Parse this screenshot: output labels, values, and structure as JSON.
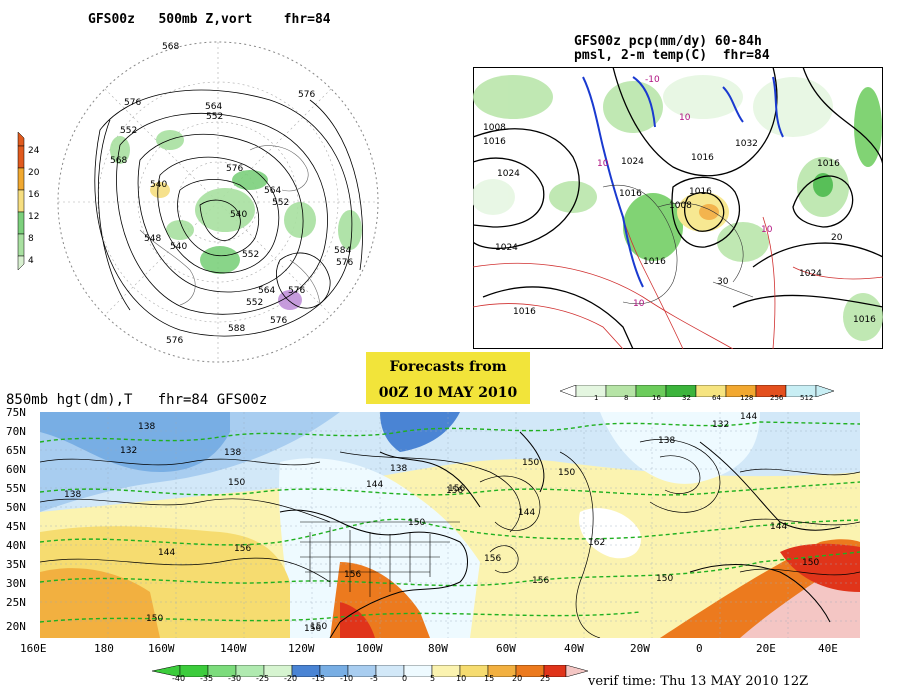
{
  "top_left_panel": {
    "title": "GFS00z   500mb Z,vort    fhr=84",
    "vort_scale": [
      "24",
      "20",
      "16",
      "12",
      "8",
      "4"
    ],
    "vort_colors": [
      "#e05a1e",
      "#f0a830",
      "#f6de80",
      "#7cd07c",
      "#a8e0a0",
      "#d8f0d0"
    ],
    "contour_labels": [
      "568",
      "576",
      "564",
      "552",
      "552",
      "576",
      "568",
      "540",
      "576",
      "564",
      "552",
      "540",
      "540",
      "584",
      "576",
      "548",
      "552",
      "564",
      "576",
      "588",
      "576",
      "552",
      "576"
    ]
  },
  "top_right_panel": {
    "title_line1": "GFS00z pcp(mm/dy) 60-84h",
    "title_line2": "pmsl, 2-m temp(C)  fhr=84",
    "isobar_labels": [
      "1008",
      "1016",
      "1024",
      "1024",
      "1016",
      "1032",
      "1016",
      "1016",
      "1024",
      "1016",
      "1008",
      "1016",
      "1016",
      "1024",
      "1016"
    ],
    "temp_labels": [
      "-10",
      "10",
      "10",
      "10",
      "10",
      "20",
      "30"
    ],
    "precip_scale": [
      "1",
      "8",
      "16",
      "32",
      "64",
      "128",
      "256",
      "512"
    ],
    "precip_colors": [
      "#e4f6e0",
      "#b6e4a6",
      "#6ccc5c",
      "#3cb43c",
      "#f6e480",
      "#f2a830",
      "#e4501e",
      "#c8eef4"
    ]
  },
  "banner": {
    "line1": "Forecasts from",
    "line2": "00Z 10 MAY 2010"
  },
  "bottom_panel": {
    "title": "850mb hgt(dm),T   fhr=84 GFS00z",
    "lat_labels": [
      "75N",
      "70N",
      "65N",
      "60N",
      "55N",
      "50N",
      "45N",
      "40N",
      "35N",
      "30N",
      "25N",
      "20N"
    ],
    "lon_labels": [
      "160E",
      "180",
      "160W",
      "140W",
      "120W",
      "100W",
      "80W",
      "60W",
      "40W",
      "20W",
      "0",
      "20E",
      "40E"
    ],
    "height_labels": [
      "138",
      "132",
      "138",
      "138",
      "150",
      "144",
      "156",
      "150",
      "156",
      "138",
      "144",
      "150",
      "156",
      "144",
      "138",
      "132",
      "144",
      "144",
      "156",
      "150",
      "156",
      "150",
      "162",
      "156",
      "150",
      "150",
      "150",
      "156"
    ],
    "temp_scale": [
      "-40",
      "-35",
      "-30",
      "-25",
      "-20",
      "-15",
      "-10",
      "-5",
      "0",
      "5",
      "10",
      "15",
      "20",
      "25"
    ],
    "temp_colors": [
      "#3ccc3c",
      "#7cdc7c",
      "#b0eab0",
      "#d6f4d0",
      "#4a84d4",
      "#78aee4",
      "#a8cdf0",
      "#d2e8f8",
      "#eefaff",
      "#fbf3b0",
      "#f6dc70",
      "#f2b040",
      "#ec7a1e",
      "#e0341a",
      "#f4c6c4"
    ],
    "verif_time": "verif time: Thu 13 MAY 2010 12Z"
  }
}
